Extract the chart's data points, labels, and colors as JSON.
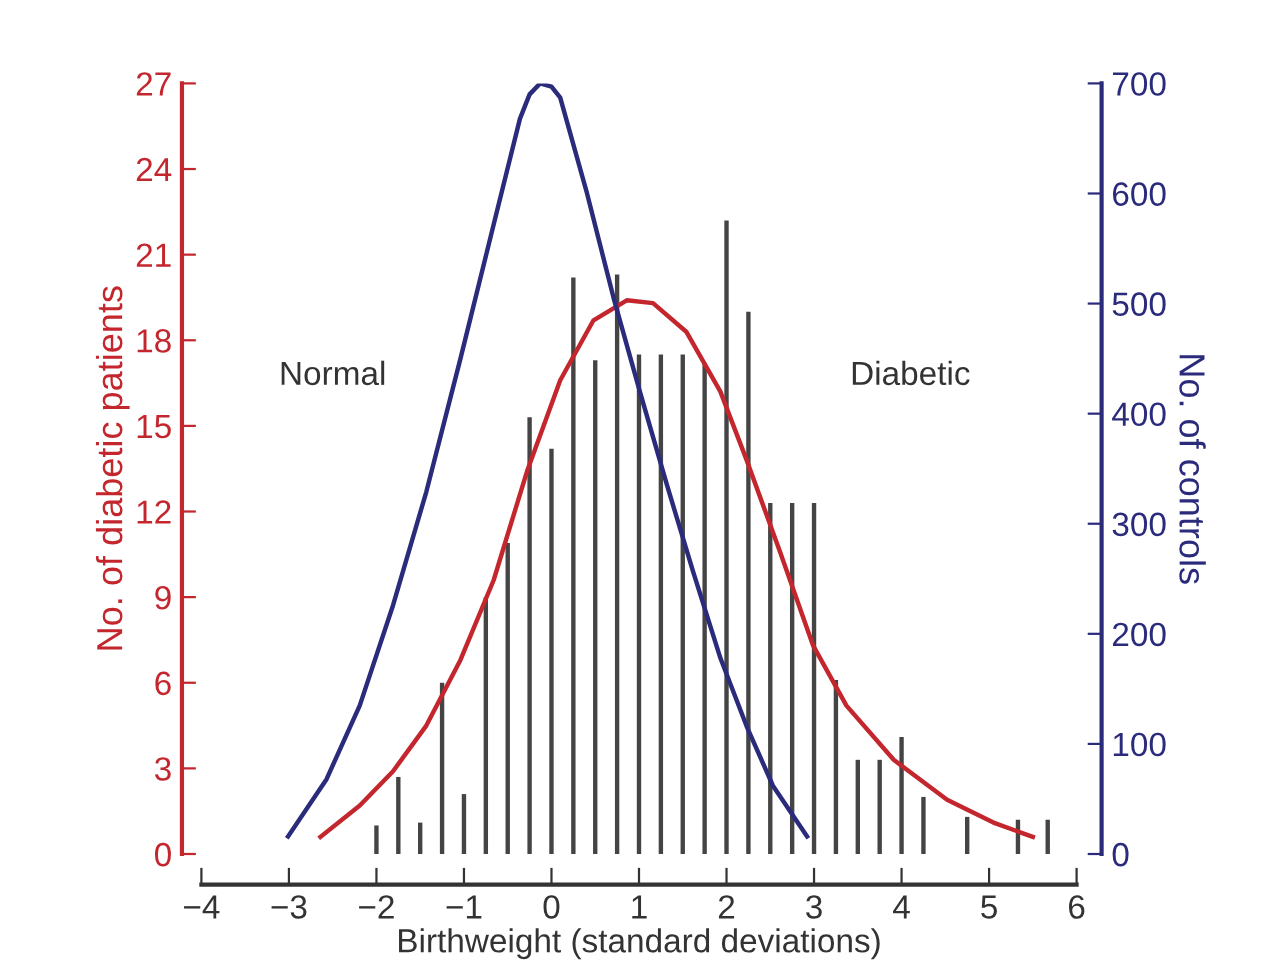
{
  "chart_data": {
    "type": "bar",
    "xlabel": "Birthweight (standard deviations)",
    "ylabel": "No. of diabetic patients",
    "y2label": "No. of controls",
    "xlim": [
      -4,
      6
    ],
    "xticks": [
      -4,
      -3,
      -2,
      -1,
      0,
      1,
      2,
      3,
      4,
      5,
      6
    ],
    "ylim": [
      0,
      27
    ],
    "yticks": [
      0,
      3,
      6,
      9,
      12,
      15,
      18,
      21,
      24,
      27
    ],
    "y2lim": [
      0,
      700
    ],
    "y2ticks": [
      0,
      100,
      200,
      300,
      400,
      500,
      600,
      700
    ],
    "grid": false,
    "series": [
      {
        "color": "#444444",
        "x": [
          -2,
          -1.75,
          -1.5,
          -1.25,
          -1,
          -0.75,
          -0.5,
          -0.25,
          0,
          0.25,
          0.5,
          0.75,
          1,
          1.25,
          1.5,
          1.75,
          2,
          2.25,
          2.5,
          2.75,
          3,
          3.25,
          3.5,
          3.75,
          4,
          4.25,
          4.75,
          5.33,
          5.67
        ],
        "values": [
          1,
          2.7,
          1.1,
          6,
          2.1,
          9,
          10.9,
          15.3,
          14.2,
          20.2,
          17.3,
          20.3,
          17.5,
          17.5,
          17.5,
          17.2,
          22.2,
          19,
          12.3,
          12.3,
          12.3,
          6.1,
          3.3,
          3.3,
          4.1,
          2,
          1.3,
          1.2,
          1.2
        ]
      },
      {
        "type": "line",
        "color": "#c4262e",
        "x": [
          -2.64,
          -2.19,
          -1.81,
          -1.43,
          -1.04,
          -0.66,
          -0.28,
          0.1,
          0.48,
          0.86,
          1.16,
          1.54,
          1.93,
          2.23,
          2.61,
          2.99,
          3.37,
          3.91,
          4.52,
          5.05,
          5.5
        ],
        "values": [
          0.6,
          1.7,
          2.9,
          4.5,
          6.8,
          9.6,
          13.4,
          16.6,
          18.7,
          19.4,
          19.3,
          18.3,
          16.2,
          13.8,
          10.6,
          7.3,
          5.2,
          3.3,
          1.9,
          1.1,
          0.6
        ]
      },
      {
        "type": "line",
        "axis": "y2",
        "color": "#2b2b7c",
        "x": [
          -3.01,
          -2.57,
          -2.19,
          -1.81,
          -1.43,
          -1.04,
          -0.66,
          -0.36,
          -0.25,
          -0.13,
          0.0,
          0.1,
          0.4,
          0.71,
          1.01,
          1.32,
          1.62,
          1.93,
          2.23,
          2.53,
          2.92
        ],
        "values": [
          16,
          68,
          135,
          226,
          329,
          450,
          572,
          668,
          690,
          700,
          697,
          687,
          602,
          505,
          420,
          335,
          256,
          178,
          116,
          62,
          16
        ]
      }
    ],
    "annotations": [
      "Normal",
      "Diabetic"
    ]
  }
}
